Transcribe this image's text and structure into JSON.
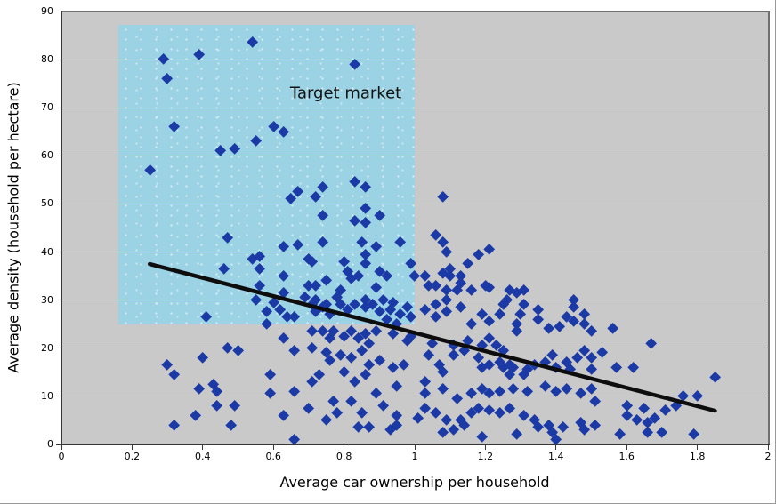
{
  "chart_data": {
    "type": "scatter",
    "title": "",
    "xlabel": "Average car ownership per household",
    "ylabel": "Average density (household per hectare)",
    "xlim": [
      0,
      2
    ],
    "ylim": [
      0,
      90
    ],
    "x_ticks": [
      0,
      0.2,
      0.4,
      0.6,
      0.8,
      1,
      1.2,
      1.4,
      1.6,
      1.8,
      2
    ],
    "x_tick_labels": [
      "0",
      "0.2",
      "0.4",
      "0.6",
      "0.8",
      "1",
      "1.2",
      "1.4",
      "1.6",
      "1.8",
      "2"
    ],
    "y_ticks": [
      0,
      10,
      20,
      30,
      40,
      50,
      60,
      70,
      80,
      90
    ],
    "y_tick_labels": [
      "0",
      "10",
      "20",
      "30",
      "40",
      "50",
      "60",
      "70",
      "80",
      "90"
    ],
    "grid": "horizontal",
    "legend": "none",
    "marker": "diamond",
    "annotations": [
      {
        "text": "Target market",
        "x": 0.805,
        "y": 73
      }
    ],
    "target_region": {
      "x0": 0.16,
      "y0": 25,
      "x1": 1.0,
      "y1": 87.3
    },
    "trendline": {
      "type": "linear",
      "x0": 0.25,
      "y0": 37.5,
      "x1": 1.85,
      "y1": 7
    },
    "colors": {
      "marker": "#1b3aa6",
      "region": "#9bd2e4",
      "trendline": "#0d0d0d",
      "plot_bg": "#c9c9c9",
      "grid": "#3f3f3f",
      "axis": "#383838",
      "figure_bg": "#ffffff"
    },
    "points": [
      [
        0.29,
        80
      ],
      [
        0.39,
        81
      ],
      [
        0.3,
        76
      ],
      [
        0.54,
        83.5
      ],
      [
        0.83,
        79
      ],
      [
        0.32,
        66
      ],
      [
        0.6,
        66
      ],
      [
        0.63,
        65
      ],
      [
        0.55,
        63
      ],
      [
        0.45,
        61
      ],
      [
        0.49,
        61.5
      ],
      [
        0.25,
        57
      ],
      [
        0.47,
        43
      ],
      [
        0.46,
        36.5
      ],
      [
        0.41,
        26.5
      ],
      [
        1.08,
        51.5
      ],
      [
        0.65,
        51
      ],
      [
        0.67,
        52.5
      ],
      [
        0.72,
        51.5
      ],
      [
        0.74,
        53.5
      ],
      [
        0.83,
        54.5
      ],
      [
        0.86,
        53.5
      ],
      [
        0.74,
        47.5
      ],
      [
        0.83,
        46.5
      ],
      [
        0.86,
        49
      ],
      [
        0.86,
        46
      ],
      [
        0.9,
        47.5
      ],
      [
        0.63,
        41
      ],
      [
        0.67,
        41.5
      ],
      [
        0.74,
        42
      ],
      [
        0.85,
        42
      ],
      [
        0.89,
        41
      ],
      [
        0.96,
        42
      ],
      [
        1.06,
        43.5
      ],
      [
        1.08,
        42
      ],
      [
        1.09,
        40
      ],
      [
        1.21,
        40.5
      ],
      [
        1.18,
        39.5
      ],
      [
        0.54,
        38.5
      ],
      [
        0.56,
        39
      ],
      [
        0.56,
        36.5
      ],
      [
        0.7,
        38.5
      ],
      [
        0.71,
        38
      ],
      [
        0.8,
        38
      ],
      [
        0.81,
        36
      ],
      [
        0.86,
        37.5
      ],
      [
        0.86,
        39.5
      ],
      [
        0.9,
        36
      ],
      [
        0.92,
        35
      ],
      [
        0.99,
        37.5
      ],
      [
        1.0,
        35
      ],
      [
        1.15,
        37.5
      ],
      [
        1.1,
        36.5
      ],
      [
        1.08,
        35.5
      ],
      [
        1.1,
        35
      ],
      [
        1.13,
        35
      ],
      [
        1.03,
        35
      ],
      [
        0.84,
        35
      ],
      [
        0.63,
        35
      ],
      [
        0.82,
        34.5
      ],
      [
        0.56,
        33
      ],
      [
        0.63,
        31.5
      ],
      [
        0.7,
        33
      ],
      [
        0.72,
        33
      ],
      [
        0.75,
        34
      ],
      [
        0.79,
        32
      ],
      [
        0.89,
        32.5
      ],
      [
        1.04,
        33
      ],
      [
        1.06,
        33
      ],
      [
        1.09,
        32
      ],
      [
        1.12,
        32
      ],
      [
        1.13,
        33.5
      ],
      [
        1.16,
        32
      ],
      [
        1.2,
        33
      ],
      [
        1.21,
        32.5
      ],
      [
        1.27,
        32
      ],
      [
        1.29,
        31.5
      ],
      [
        1.31,
        32
      ],
      [
        0.55,
        30
      ],
      [
        0.6,
        29.5
      ],
      [
        0.69,
        30.5
      ],
      [
        0.72,
        30
      ],
      [
        0.75,
        29
      ],
      [
        0.78,
        30.5
      ],
      [
        0.79,
        29
      ],
      [
        0.83,
        29
      ],
      [
        0.86,
        30
      ],
      [
        0.88,
        29
      ],
      [
        0.91,
        30
      ],
      [
        0.94,
        29.5
      ],
      [
        0.98,
        28.5
      ],
      [
        1.03,
        28
      ],
      [
        1.06,
        29
      ],
      [
        1.09,
        30
      ],
      [
        1.13,
        28.5
      ],
      [
        1.25,
        29
      ],
      [
        1.26,
        30
      ],
      [
        1.31,
        29
      ],
      [
        1.35,
        28
      ],
      [
        1.45,
        28.5
      ],
      [
        1.45,
        30
      ],
      [
        0.58,
        27.5
      ],
      [
        0.62,
        28
      ],
      [
        0.64,
        26.5
      ],
      [
        0.66,
        26.5
      ],
      [
        0.71,
        29
      ],
      [
        0.72,
        27.5
      ],
      [
        0.74,
        28.5
      ],
      [
        0.76,
        27
      ],
      [
        0.81,
        28
      ],
      [
        0.86,
        28.5
      ],
      [
        0.9,
        27.5
      ],
      [
        0.93,
        28
      ],
      [
        0.96,
        27
      ],
      [
        0.99,
        26.5
      ],
      [
        1.06,
        26.5
      ],
      [
        1.09,
        27.5
      ],
      [
        1.19,
        27
      ],
      [
        1.24,
        27
      ],
      [
        1.3,
        27
      ],
      [
        1.35,
        26
      ],
      [
        1.43,
        26.5
      ],
      [
        1.48,
        27
      ],
      [
        1.45,
        25.5
      ],
      [
        1.48,
        25
      ],
      [
        1.16,
        25
      ],
      [
        1.21,
        25.5
      ],
      [
        1.29,
        25
      ],
      [
        0.58,
        25
      ],
      [
        0.92,
        26
      ],
      [
        0.95,
        25
      ],
      [
        0.71,
        23.5
      ],
      [
        0.74,
        23.5
      ],
      [
        0.77,
        23.5
      ],
      [
        0.82,
        23.5
      ],
      [
        0.86,
        23
      ],
      [
        0.89,
        23.5
      ],
      [
        0.94,
        23
      ],
      [
        0.99,
        22.5
      ],
      [
        0.63,
        22
      ],
      [
        0.76,
        22
      ],
      [
        0.8,
        22.5
      ],
      [
        0.84,
        22
      ],
      [
        1.29,
        23.5
      ],
      [
        1.38,
        24
      ],
      [
        1.41,
        24.5
      ],
      [
        1.5,
        23.5
      ],
      [
        1.56,
        24
      ],
      [
        1.05,
        21
      ],
      [
        1.11,
        20.5
      ],
      [
        0.87,
        21
      ],
      [
        0.98,
        21.5
      ],
      [
        1.21,
        22
      ],
      [
        1.23,
        20.5
      ],
      [
        1.19,
        20.5
      ],
      [
        1.15,
        21.5
      ],
      [
        1.67,
        21
      ],
      [
        0.66,
        19.5
      ],
      [
        0.71,
        20
      ],
      [
        0.75,
        19
      ],
      [
        0.79,
        18.5
      ],
      [
        0.82,
        18
      ],
      [
        0.85,
        19.5
      ],
      [
        0.9,
        17.5
      ],
      [
        0.76,
        17.5
      ],
      [
        1.04,
        18.5
      ],
      [
        1.11,
        18.5
      ],
      [
        1.14,
        19.5
      ],
      [
        1.18,
        18
      ],
      [
        1.25,
        19.5
      ],
      [
        1.39,
        18.5
      ],
      [
        1.46,
        18
      ],
      [
        1.48,
        19.5
      ],
      [
        1.5,
        18
      ],
      [
        1.37,
        17
      ],
      [
        1.43,
        17
      ],
      [
        1.24,
        17
      ],
      [
        0.47,
        20
      ],
      [
        0.5,
        19.5
      ],
      [
        0.4,
        18
      ],
      [
        1.53,
        19
      ],
      [
        0.3,
        16.5
      ],
      [
        0.87,
        16.5
      ],
      [
        0.94,
        16
      ],
      [
        0.97,
        16.5
      ],
      [
        1.07,
        16.5
      ],
      [
        1.19,
        16
      ],
      [
        1.21,
        16.5
      ],
      [
        1.25,
        16
      ],
      [
        1.27,
        16.5
      ],
      [
        1.28,
        16
      ],
      [
        1.32,
        15.5
      ],
      [
        1.34,
        16.5
      ],
      [
        1.4,
        16
      ],
      [
        1.44,
        15.5
      ],
      [
        1.5,
        15.5
      ],
      [
        1.57,
        16
      ],
      [
        1.62,
        16
      ],
      [
        1.08,
        15
      ],
      [
        0.8,
        15
      ],
      [
        0.32,
        14.5
      ],
      [
        0.59,
        14.5
      ],
      [
        0.71,
        13
      ],
      [
        0.73,
        14.5
      ],
      [
        0.83,
        13
      ],
      [
        0.86,
        14.5
      ],
      [
        0.95,
        12
      ],
      [
        1.03,
        13
      ],
      [
        1.27,
        14.5
      ],
      [
        1.31,
        14.5
      ],
      [
        0.39,
        11.5
      ],
      [
        0.43,
        12.5
      ],
      [
        0.44,
        11
      ],
      [
        1.03,
        10.5
      ],
      [
        1.08,
        11.5
      ],
      [
        1.12,
        9.5
      ],
      [
        1.16,
        10.5
      ],
      [
        1.19,
        11.5
      ],
      [
        1.21,
        10.5
      ],
      [
        1.24,
        11
      ],
      [
        1.28,
        11.5
      ],
      [
        1.32,
        11
      ],
      [
        1.37,
        12
      ],
      [
        1.4,
        11
      ],
      [
        1.43,
        11.5
      ],
      [
        1.47,
        10.5
      ],
      [
        1.5,
        11.5
      ],
      [
        1.85,
        14
      ],
      [
        1.76,
        10
      ],
      [
        1.8,
        10
      ],
      [
        1.51,
        9
      ],
      [
        0.44,
        8
      ],
      [
        0.49,
        8
      ],
      [
        0.38,
        6
      ],
      [
        0.59,
        10.5
      ],
      [
        0.66,
        11
      ],
      [
        0.7,
        7.5
      ],
      [
        0.77,
        9
      ],
      [
        0.78,
        6.5
      ],
      [
        0.82,
        9
      ],
      [
        0.85,
        6.5
      ],
      [
        0.89,
        10.5
      ],
      [
        0.91,
        8
      ],
      [
        0.95,
        6
      ],
      [
        0.63,
        6
      ],
      [
        0.75,
        5
      ],
      [
        1.03,
        7.5
      ],
      [
        1.06,
        6.5
      ],
      [
        1.09,
        5
      ],
      [
        1.13,
        5
      ],
      [
        1.16,
        6.5
      ],
      [
        1.18,
        7.5
      ],
      [
        1.21,
        7
      ],
      [
        1.24,
        6.5
      ],
      [
        1.27,
        7.5
      ],
      [
        1.31,
        6
      ],
      [
        1.34,
        5
      ],
      [
        1.01,
        5.5
      ],
      [
        1.6,
        8
      ],
      [
        1.6,
        6
      ],
      [
        1.63,
        5
      ],
      [
        1.65,
        7.5
      ],
      [
        1.68,
        5.5
      ],
      [
        1.71,
        7
      ],
      [
        1.74,
        8
      ],
      [
        0.32,
        4
      ],
      [
        0.48,
        4
      ],
      [
        0.66,
        1
      ],
      [
        0.84,
        3.5
      ],
      [
        0.87,
        3.5
      ],
      [
        0.93,
        3
      ],
      [
        0.95,
        4
      ],
      [
        1.08,
        2.5
      ],
      [
        1.11,
        3
      ],
      [
        1.14,
        4
      ],
      [
        1.19,
        1.5
      ],
      [
        1.29,
        2
      ],
      [
        1.35,
        3.5
      ],
      [
        1.38,
        4
      ],
      [
        1.39,
        2.5
      ],
      [
        1.4,
        1
      ],
      [
        1.42,
        3.5
      ],
      [
        1.47,
        4.5
      ],
      [
        1.48,
        3
      ],
      [
        1.51,
        4
      ],
      [
        1.58,
        2
      ],
      [
        1.66,
        4.5
      ],
      [
        1.66,
        2.5
      ],
      [
        1.7,
        2.5
      ],
      [
        1.79,
        2
      ]
    ]
  }
}
